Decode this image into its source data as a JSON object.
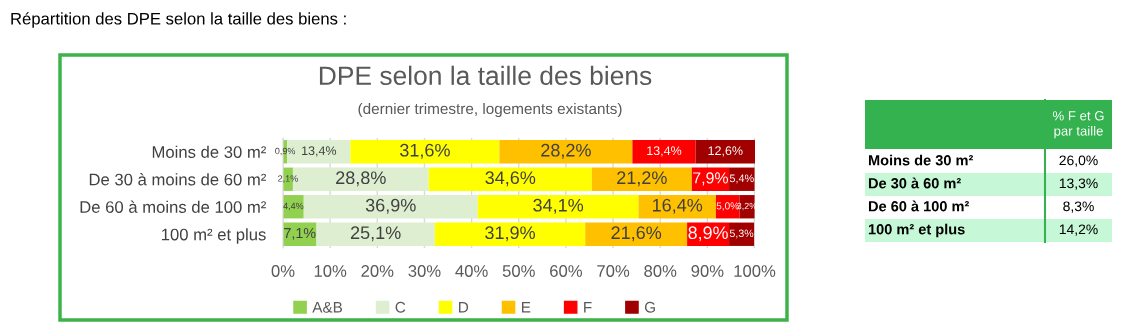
{
  "chart_data": [
    {
      "type": "bar",
      "orientation": "horizontal",
      "stacked": true,
      "title": "DPE selon la taille des biens",
      "subtitle": "(dernier trimestre, logements existants)",
      "annotations": [
        "Répartition des DPE selon la taille des biens :"
      ],
      "categories": [
        "Moins de 30 m²",
        "De 30 à moins de 60 m²",
        "De 60 à moins de 100 m²",
        "100 m² et plus"
      ],
      "series": [
        {
          "name": "A&B",
          "color": "#92d050",
          "values": [
            0.9,
            2.1,
            4.4,
            7.1
          ],
          "value_labels": [
            "0,9%",
            "2,1%",
            "4,4%",
            "7,1%"
          ]
        },
        {
          "name": "C",
          "color": "#ddefd0",
          "values": [
            13.4,
            28.8,
            36.9,
            25.1
          ],
          "value_labels": [
            "13,4%",
            "28,8%",
            "36,9%",
            "25,1%"
          ]
        },
        {
          "name": "D",
          "color": "#ffff00",
          "values": [
            31.6,
            34.6,
            34.1,
            31.9
          ],
          "value_labels": [
            "31,6%",
            "34,6%",
            "34,1%",
            "31,9%"
          ]
        },
        {
          "name": "E",
          "color": "#ffc000",
          "values": [
            28.2,
            21.2,
            16.4,
            21.6
          ],
          "value_labels": [
            "28,2%",
            "21,2%",
            "16,4%",
            "21,6%"
          ]
        },
        {
          "name": "F",
          "color": "#ff0000",
          "values": [
            13.4,
            7.9,
            5.0,
            8.9
          ],
          "value_labels": [
            "13,4%",
            "7,9%",
            "5,0%",
            "8,9%"
          ]
        },
        {
          "name": "G",
          "color": "#a00000",
          "values": [
            12.6,
            5.4,
            3.2,
            5.3
          ],
          "value_labels": [
            "12,6%",
            "5,4%",
            "3,2%",
            "5,3%"
          ]
        }
      ],
      "xlim": [
        0,
        100.1
      ],
      "xticks": [
        {
          "value": 0,
          "label": "0%"
        },
        {
          "value": 10,
          "label": "10%"
        },
        {
          "value": 20,
          "label": "20%"
        },
        {
          "value": 30,
          "label": "30%"
        },
        {
          "value": 40,
          "label": "40%"
        },
        {
          "value": 50,
          "label": "50%"
        },
        {
          "value": 60,
          "label": "60%"
        },
        {
          "value": 70,
          "label": "70%"
        },
        {
          "value": 80,
          "label": "80%"
        },
        {
          "value": 90,
          "label": "90%"
        },
        {
          "value": 100,
          "label": "100%"
        }
      ],
      "grid": "x",
      "legend": "bottom"
    },
    {
      "type": "other",
      "title": "% F et G par taille",
      "categories": [
        "Moins de 30 m²",
        "De 30 à 60 m²",
        "De 60 à 100 m²",
        "100 m² et plus"
      ],
      "value_labels": [
        "26,0%",
        "13,3%",
        "8,3%",
        "14,2%"
      ]
    }
  ]
}
